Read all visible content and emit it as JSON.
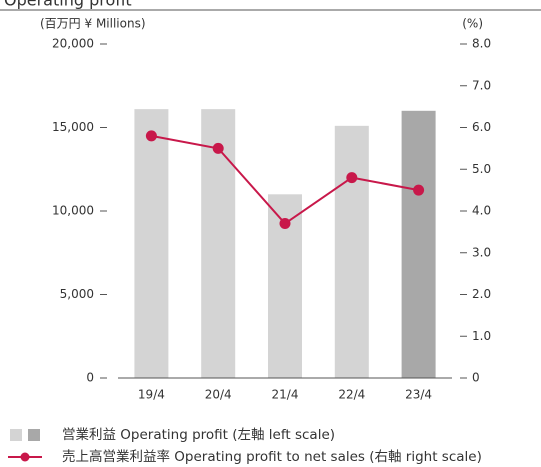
{
  "chart_data": {
    "type": "bar",
    "title": "Operating profit",
    "y_label": "(百万円 ¥ Millions)",
    "y2_label": "(%)",
    "categories": [
      "19/4",
      "20/4",
      "21/4",
      "22/4",
      "23/4"
    ],
    "series": [
      {
        "name": "営業利益 Operating profit (左軸 left scale)",
        "type": "bar",
        "colors": [
          "#d4d4d4",
          "#d4d4d4",
          "#d4d4d4",
          "#d4d4d4",
          "#a8a8a8"
        ],
        "values": [
          16100,
          16100,
          11000,
          15100,
          16000
        ]
      },
      {
        "name": "売上高営業利益率 Operating profit to net sales (右軸 right scale)",
        "type": "line",
        "axis": "y2",
        "color": "#c8184a",
        "values": [
          5.8,
          5.5,
          3.7,
          4.8,
          4.5
        ]
      }
    ],
    "ylim": [
      0,
      20000
    ],
    "yticks": [
      0,
      {
        "value": 5000,
        "label": "5,000"
      },
      {
        "value": 10000,
        "label": "10,000"
      },
      {
        "value": 15000,
        "label": "15,000"
      },
      {
        "value": 20000,
        "label": "20,000"
      }
    ],
    "y2lim": [
      0,
      8
    ],
    "y2ticks": [
      0,
      {
        "value": 1,
        "label": "1.0"
      },
      {
        "value": 2,
        "label": "2.0"
      },
      {
        "value": 3,
        "label": "3.0"
      },
      {
        "value": 4,
        "label": "4.0"
      },
      {
        "value": 5,
        "label": "5.0"
      },
      {
        "value": 6,
        "label": "6.0"
      },
      {
        "value": 7,
        "label": "7.0"
      },
      {
        "value": 8,
        "label": "8.0"
      }
    ]
  }
}
